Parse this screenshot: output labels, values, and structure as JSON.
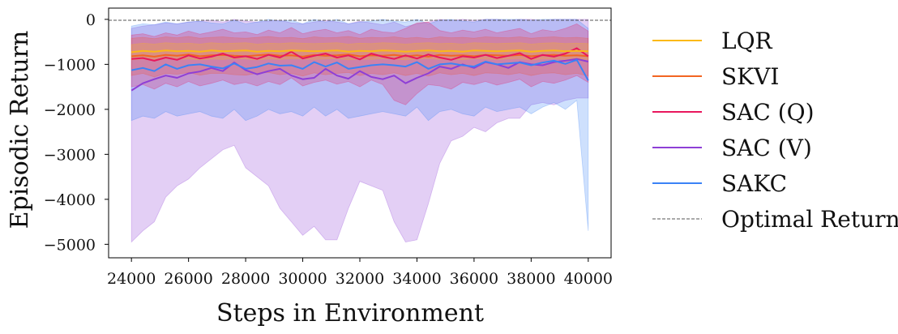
{
  "chart_data": {
    "type": "line",
    "xlabel": "Steps in Environment",
    "ylabel": "Episodic Return",
    "xlim": [
      23200,
      40800
    ],
    "ylim": [
      -5300,
      250
    ],
    "xticks": [
      24000,
      26000,
      28000,
      30000,
      32000,
      34000,
      36000,
      38000,
      40000
    ],
    "xtick_labels": [
      "24000",
      "26000",
      "28000",
      "30000",
      "32000",
      "34000",
      "36000",
      "38000",
      "40000"
    ],
    "yticks": [
      0,
      -1000,
      -2000,
      -3000,
      -4000,
      -5000
    ],
    "ytick_labels": [
      "0",
      "−1000",
      "−2000",
      "−3000",
      "−4000",
      "−5000"
    ],
    "grid": false,
    "legend_placement": "outside right",
    "reference_line": {
      "name": "Optimal Return",
      "y": -20,
      "style": "dashed",
      "color": "#555555"
    },
    "x": [
      24000,
      24400,
      24800,
      25200,
      25600,
      26000,
      26400,
      26800,
      27200,
      27600,
      28000,
      28400,
      28800,
      29200,
      29600,
      30000,
      30400,
      30800,
      31200,
      31600,
      32000,
      32400,
      32800,
      33200,
      33600,
      34000,
      34400,
      34800,
      35200,
      35600,
      36000,
      36400,
      36800,
      37200,
      37600,
      38000,
      38400,
      38800,
      39200,
      39600,
      40000
    ],
    "series": [
      {
        "name": "LQR",
        "color": "#fbb917",
        "values": [
          -730,
          -700,
          -720,
          -690,
          -710,
          -700,
          -720,
          -690,
          -710,
          -700,
          -690,
          -720,
          -700,
          -710,
          -690,
          -700,
          -710,
          -700,
          -690,
          -720,
          -700,
          -710,
          -690,
          -700,
          -720,
          -700,
          -690,
          -710,
          -700,
          -720,
          -690,
          -700,
          -710,
          -700,
          -690,
          -720,
          -700,
          -690,
          -710,
          -700,
          -710
        ],
        "lower": [
          -900,
          -880,
          -900,
          -870,
          -890,
          -880,
          -900,
          -880,
          -890,
          -870,
          -880,
          -900,
          -880,
          -890,
          -870,
          -880,
          -890,
          -880,
          -870,
          -900,
          -880,
          -890,
          -870,
          -880,
          -900,
          -880,
          -870,
          -890,
          -880,
          -900,
          -870,
          -880,
          -890,
          -880,
          -870,
          -900,
          -880,
          -870,
          -890,
          -880,
          -890
        ],
        "upper": [
          -560,
          -530,
          -550,
          -520,
          -540,
          -530,
          -550,
          -520,
          -540,
          -530,
          -520,
          -550,
          -530,
          -540,
          -520,
          -530,
          -540,
          -530,
          -520,
          -550,
          -530,
          -540,
          -520,
          -530,
          -550,
          -530,
          -520,
          -540,
          -530,
          -550,
          -520,
          -530,
          -540,
          -530,
          -520,
          -550,
          -530,
          -520,
          -540,
          -530,
          -540
        ]
      },
      {
        "name": "SKVI",
        "color": "#f26522",
        "values": [
          -820,
          -800,
          -830,
          -790,
          -810,
          -780,
          -820,
          -800,
          -790,
          -810,
          -820,
          -800,
          -780,
          -810,
          -800,
          -830,
          -790,
          -810,
          -800,
          -780,
          -820,
          -800,
          -810,
          -790,
          -820,
          -800,
          -830,
          -790,
          -810,
          -800,
          -820,
          -790,
          -800,
          -810,
          -790,
          -820,
          -800,
          -790,
          -810,
          -800,
          -820
        ],
        "lower": [
          -1250,
          -1200,
          -1280,
          -1200,
          -1220,
          -1180,
          -1240,
          -1200,
          -1200,
          -1230,
          -1240,
          -1200,
          -1180,
          -1230,
          -1200,
          -1260,
          -1190,
          -1230,
          -1200,
          -1180,
          -1250,
          -1200,
          -1230,
          -1190,
          -1250,
          -1200,
          -1260,
          -1190,
          -1230,
          -1200,
          -1250,
          -1190,
          -1200,
          -1230,
          -1190,
          -1250,
          -1200,
          -1190,
          -1230,
          -1200,
          -1260
        ],
        "upper": [
          -420,
          -400,
          -430,
          -390,
          -410,
          -380,
          -420,
          -400,
          -390,
          -410,
          -420,
          -400,
          -380,
          -410,
          -400,
          -430,
          -390,
          -410,
          -400,
          -380,
          -420,
          -400,
          -410,
          -390,
          -420,
          -400,
          -430,
          -390,
          -410,
          -400,
          -420,
          -390,
          -400,
          -410,
          -390,
          -420,
          -400,
          -390,
          -410,
          -400,
          -420
        ]
      },
      {
        "name": "SAC (Q)",
        "color": "#e8175d",
        "values": [
          -880,
          -860,
          -920,
          -850,
          -900,
          -800,
          -870,
          -830,
          -760,
          -850,
          -820,
          -880,
          -790,
          -850,
          -720,
          -870,
          -810,
          -760,
          -850,
          -800,
          -890,
          -760,
          -830,
          -880,
          -800,
          -870,
          -780,
          -850,
          -900,
          -820,
          -850,
          -790,
          -860,
          -810,
          -750,
          -880,
          -790,
          -830,
          -760,
          -640,
          -820
        ],
        "lower": [
          -1500,
          -1450,
          -1550,
          -1420,
          -1500,
          -1380,
          -1480,
          -1420,
          -1350,
          -1450,
          -1400,
          -1480,
          -1380,
          -1450,
          -1300,
          -1480,
          -1400,
          -1350,
          -1440,
          -1380,
          -1500,
          -1350,
          -1450,
          -1800,
          -1900,
          -1650,
          -1450,
          -1480,
          -1550,
          -1400,
          -1450,
          -1380,
          -1460,
          -1400,
          -1330,
          -1500,
          -1380,
          -1420,
          -1350,
          -1250,
          -1400
        ],
        "upper": [
          -350,
          -320,
          -380,
          -300,
          -350,
          -260,
          -330,
          -280,
          -220,
          -300,
          -280,
          -340,
          -240,
          -300,
          -180,
          -320,
          -260,
          -220,
          -300,
          -250,
          -340,
          -220,
          -280,
          -300,
          -200,
          -80,
          -60,
          -250,
          -300,
          -240,
          -280,
          -220,
          -300,
          -250,
          -200,
          -320,
          -230,
          -270,
          -200,
          -100,
          -260
        ]
      },
      {
        "name": "SAC (V)",
        "color": "#8e3fd6",
        "values": [
          -1580,
          -1420,
          -1330,
          -1250,
          -1300,
          -1200,
          -1160,
          -1080,
          -1150,
          -960,
          -1130,
          -1220,
          -1150,
          -1100,
          -1250,
          -1330,
          -1300,
          -1100,
          -1250,
          -1320,
          -1150,
          -1280,
          -1330,
          -1250,
          -1420,
          -1300,
          -1200,
          -1050,
          -1100,
          -1000,
          -1080,
          -950,
          -1000,
          -1080,
          -950,
          -1000,
          -1020,
          -950,
          -920,
          -880,
          -940
        ],
        "lower": [
          -4950,
          -4700,
          -4500,
          -3950,
          -3700,
          -3550,
          -3300,
          -3100,
          -2900,
          -2800,
          -3300,
          -3500,
          -3700,
          -4200,
          -4500,
          -4800,
          -4600,
          -4900,
          -4900,
          -4200,
          -3600,
          -3700,
          -3800,
          -4500,
          -4950,
          -4900,
          -4100,
          -3200,
          -2700,
          -2600,
          -2400,
          -2500,
          -2300,
          -2200,
          -2200,
          -1900,
          -1850,
          -1900,
          -1800,
          -1750,
          -1750
        ],
        "upper": [
          -200,
          -150,
          -120,
          -80,
          -100,
          -60,
          -40,
          -20,
          -60,
          0,
          -40,
          -60,
          -40,
          -20,
          -80,
          -100,
          -60,
          -20,
          -60,
          -100,
          -40,
          -80,
          -120,
          -60,
          -160,
          -100,
          -60,
          0,
          -20,
          0,
          -20,
          0,
          0,
          -20,
          0,
          0,
          -20,
          0,
          0,
          0,
          0
        ]
      },
      {
        "name": "SAKC",
        "color": "#3b82f6",
        "values": [
          -1130,
          -1080,
          -1150,
          -1000,
          -1100,
          -1020,
          -1000,
          -1050,
          -1090,
          -980,
          -1100,
          -1060,
          -980,
          -1030,
          -1020,
          -1100,
          -950,
          -1050,
          -960,
          -1100,
          -1060,
          -1020,
          -1000,
          -1020,
          -1050,
          -950,
          -1100,
          -1000,
          -980,
          -1020,
          -1050,
          -940,
          -1000,
          -980,
          -960,
          -1020,
          -960,
          -920,
          -990,
          -900,
          -1360
        ],
        "lower": [
          -2250,
          -2150,
          -2200,
          -2050,
          -2150,
          -2100,
          -2050,
          -2150,
          -2200,
          -2000,
          -2250,
          -2150,
          -2000,
          -2100,
          -2050,
          -2150,
          -1950,
          -2150,
          -2000,
          -2200,
          -2150,
          -2100,
          -2050,
          -2100,
          -2150,
          -1950,
          -2250,
          -2050,
          -2000,
          -2100,
          -2150,
          -1950,
          -2050,
          -2000,
          -1950,
          -2100,
          -1950,
          -1850,
          -2000,
          -1800,
          -4700
        ],
        "upper": [
          -150,
          -100,
          -120,
          -60,
          -100,
          -60,
          -40,
          -80,
          -100,
          -20,
          -100,
          -60,
          0,
          -40,
          -20,
          -100,
          0,
          -60,
          0,
          -100,
          -60,
          -40,
          0,
          -40,
          -60,
          0,
          -100,
          -20,
          0,
          -40,
          -60,
          0,
          0,
          0,
          0,
          -20,
          0,
          0,
          0,
          0,
          -200
        ]
      }
    ]
  }
}
